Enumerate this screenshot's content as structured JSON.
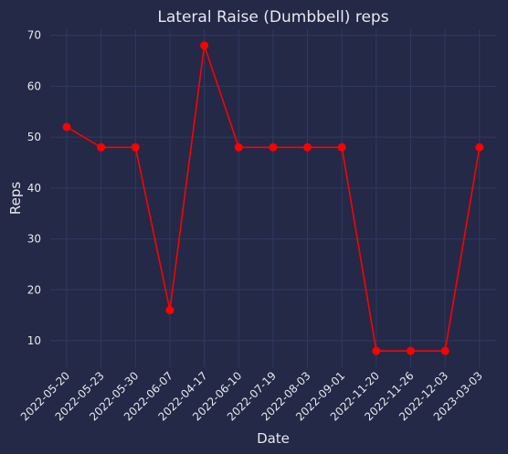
{
  "chart_data": {
    "type": "line",
    "title": "Lateral Raise (Dumbbell) reps",
    "xlabel": "Date",
    "ylabel": "Reps",
    "categories": [
      "2022-05-20",
      "2022-05-23",
      "2022-05-30",
      "2022-06-07",
      "2022-04-17",
      "2022-06-10",
      "2022-07-19",
      "2022-08-03",
      "2022-09-01",
      "2022-11-20",
      "2022-11-26",
      "2022-12-03",
      "2023-03-03"
    ],
    "series": [
      {
        "values": [
          52,
          48,
          48,
          16,
          68,
          48,
          48,
          48,
          48,
          8,
          8,
          8,
          48
        ],
        "color": "#ff0000"
      }
    ],
    "ylim": [
      4.8,
      71.2
    ],
    "yticks": [
      10,
      20,
      30,
      40,
      50,
      60,
      70
    ],
    "grid": true
  },
  "colors": {
    "background": "#232946",
    "grid": "#2f3a63",
    "text": "#e8e8ef",
    "line": "#ff0000"
  }
}
